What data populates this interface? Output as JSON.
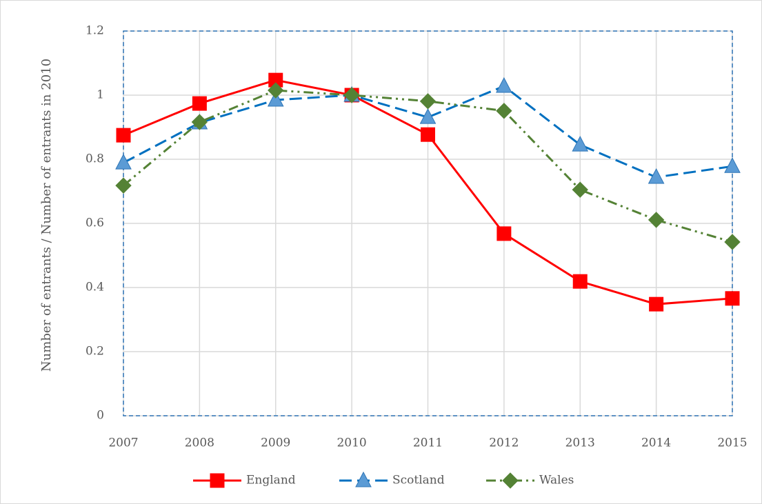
{
  "chart_data": {
    "type": "line",
    "y_label": "Number of entrants / Number of entrants in 2010",
    "categories": [
      "2007",
      "2008",
      "2009",
      "2010",
      "2011",
      "2012",
      "2013",
      "2014",
      "2015"
    ],
    "series": [
      {
        "name": "England",
        "color": "#ff0000",
        "marker": "square",
        "line_style": "solid",
        "values": [
          0.875,
          0.974,
          1.047,
          1.0,
          0.877,
          0.568,
          0.419,
          0.348,
          0.366
        ]
      },
      {
        "name": "Scotland",
        "color": "#0070c0",
        "marker": "triangle",
        "line_style": "dashed",
        "values": [
          0.789,
          0.914,
          0.985,
          1.0,
          0.931,
          1.028,
          0.845,
          0.744,
          0.778
        ]
      },
      {
        "name": "Wales",
        "color": "#548235",
        "marker": "diamond",
        "line_style": "dashdot",
        "values": [
          0.718,
          0.916,
          1.015,
          1.0,
          0.981,
          0.951,
          0.705,
          0.611,
          0.542
        ]
      }
    ],
    "ylim": [
      0,
      1.2
    ],
    "yticks": [
      0,
      0.2,
      0.4,
      0.6,
      0.8,
      1,
      1.2
    ],
    "grid": true,
    "legend": "bottom"
  }
}
